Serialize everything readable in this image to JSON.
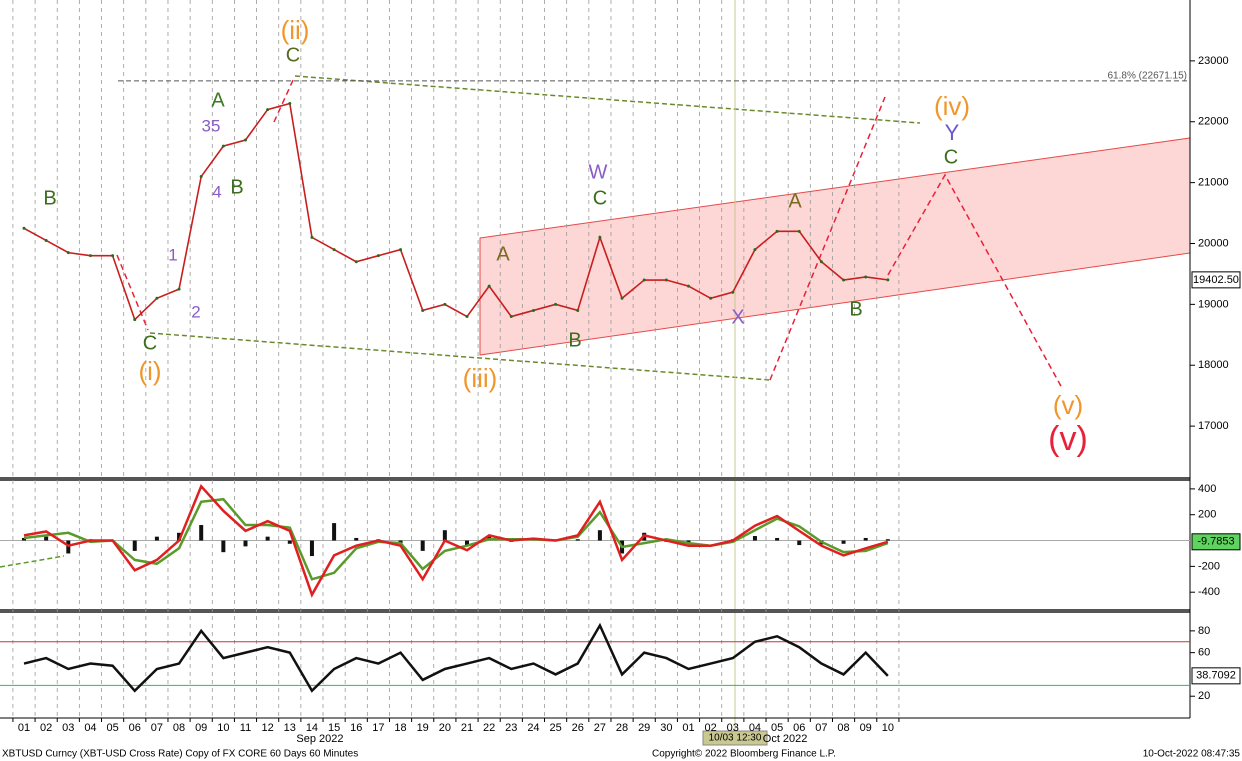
{
  "chart_data": [
    {
      "type": "line",
      "color": "#c81e1e",
      "categories": [
        "01",
        "02",
        "03",
        "04",
        "05",
        "06",
        "07",
        "08",
        "09",
        "10",
        "11",
        "12",
        "13",
        "14",
        "15",
        "16",
        "17",
        "18",
        "19",
        "20",
        "21",
        "22",
        "23",
        "24",
        "25",
        "26",
        "27",
        "28",
        "29",
        "30",
        "01",
        "02",
        "03",
        "04",
        "05",
        "06",
        "07",
        "08",
        "09",
        "10"
      ],
      "month_labels": [
        {
          "label": "Sep 2022",
          "index": 13
        },
        {
          "label": "Oct 2022",
          "index": 34
        }
      ],
      "values": [
        20250,
        20050,
        19850,
        19800,
        19800,
        18750,
        19100,
        19250,
        21100,
        21600,
        21700,
        22200,
        22300,
        20100,
        19900,
        19700,
        19800,
        19900,
        18900,
        19000,
        18800,
        19300,
        18800,
        18900,
        19000,
        18900,
        20100,
        19100,
        19400,
        19400,
        19300,
        19100,
        19200,
        19900,
        20200,
        20200,
        19700,
        19400,
        19450,
        19402.5
      ],
      "ylim": [
        16164,
        24000
      ],
      "yticks": [
        17000,
        18000,
        19000,
        20000,
        21000,
        22000,
        23000
      ],
      "current": {
        "value": 19402.5,
        "label": "19402.50",
        "box_color": "#ffffff"
      },
      "levels": [
        {
          "value": 22671.15,
          "label": "61.8% (22671.15)",
          "color": "#555555"
        }
      ],
      "annotations": [
        {
          "text": "(ii)",
          "color": "#f0962a"
        },
        {
          "text": "C",
          "color": "#556b1f"
        },
        {
          "text": "A",
          "color": "#3c7a1e"
        },
        {
          "text": "35",
          "color": "#8a5cc7"
        },
        {
          "text": "B",
          "color": "#3c6e1e"
        },
        {
          "text": "4",
          "color": "#8a5cc7"
        },
        {
          "text": "B",
          "color": "#3c6e1e"
        },
        {
          "text": "1",
          "color": "#8a5cc7"
        },
        {
          "text": "2",
          "color": "#8a5cc7"
        },
        {
          "text": "C",
          "color": "#3c6e1e"
        },
        {
          "text": "(i)",
          "color": "#f0962a"
        },
        {
          "text": "(iii)",
          "color": "#f0962a"
        },
        {
          "text": "A",
          "color": "#7a6a1e"
        },
        {
          "text": "W",
          "color": "#8a5cc7"
        },
        {
          "text": "C",
          "color": "#3c6e1e"
        },
        {
          "text": "B",
          "color": "#3c6e1e"
        },
        {
          "text": "X",
          "color": "#8a5cc7"
        },
        {
          "text": "A",
          "color": "#7a6a1e"
        },
        {
          "text": "B",
          "color": "#3c6e1e"
        },
        {
          "text": "(iv)",
          "color": "#f0962a"
        },
        {
          "text": "Y",
          "color": "#6a5acd"
        },
        {
          "text": "C",
          "color": "#3c6e1e"
        },
        {
          "text": "(v)",
          "color": "#f0962a"
        },
        {
          "text": "(v)",
          "color": "#e8213a"
        }
      ]
    },
    {
      "type": "macd",
      "series": [
        {
          "color": "#e02020",
          "values": [
            40,
            70,
            -40,
            0,
            0,
            -230,
            -150,
            0,
            420,
            230,
            75,
            150,
            75,
            -420,
            -115,
            -40,
            0,
            -40,
            -300,
            0,
            -75,
            40,
            0,
            15,
            0,
            40,
            300,
            -150,
            40,
            0,
            -40,
            -40,
            0,
            115,
            190,
            75,
            -40,
            -115,
            -60,
            -9.7853
          ]
        },
        {
          "color": "#5a9a2a",
          "values": [
            20,
            40,
            60,
            -10,
            0,
            -150,
            -180,
            -60,
            300,
            320,
            120,
            120,
            100,
            -300,
            -250,
            -60,
            -10,
            -20,
            -220,
            -80,
            -40,
            10,
            10,
            10,
            0,
            30,
            220,
            -50,
            -20,
            10,
            -20,
            -40,
            -10,
            80,
            170,
            110,
            -10,
            -90,
            -80,
            -20
          ]
        }
      ],
      "ylim": [
        -530,
        461
      ],
      "yticks": [
        -400,
        -200,
        200,
        400
      ],
      "current": {
        "value": -9.7853,
        "label": "-9.7853",
        "box_color": "#5fd35f"
      }
    },
    {
      "type": "rsi",
      "color": "#111111",
      "values": [
        50,
        55,
        45,
        50,
        48,
        25,
        45,
        50,
        80,
        55,
        60,
        65,
        60,
        25,
        45,
        55,
        50,
        60,
        35,
        45,
        50,
        55,
        45,
        50,
        40,
        50,
        85,
        40,
        60,
        55,
        45,
        50,
        55,
        70,
        75,
        65,
        50,
        40,
        60,
        38.7092
      ],
      "ylim": [
        0,
        96.4
      ],
      "yticks": [
        20,
        60,
        80
      ],
      "current": {
        "value": 38.7092,
        "label": "38.7092",
        "box_color": "#ffffff"
      },
      "levels": [
        {
          "value": 70,
          "color": "#d03030"
        },
        {
          "value": 30,
          "color": "#30c030"
        }
      ]
    }
  ],
  "crosshair_label": "10/03 12:30",
  "footer": {
    "left": "XBTUSD Curncy (XBT-USD Cross Rate) Copy of FX CORE 60 Days 60 Minutes",
    "center": "Copyright© 2022 Bloomberg Finance L.P.",
    "right": "10-Oct-2022 08:47:35"
  }
}
